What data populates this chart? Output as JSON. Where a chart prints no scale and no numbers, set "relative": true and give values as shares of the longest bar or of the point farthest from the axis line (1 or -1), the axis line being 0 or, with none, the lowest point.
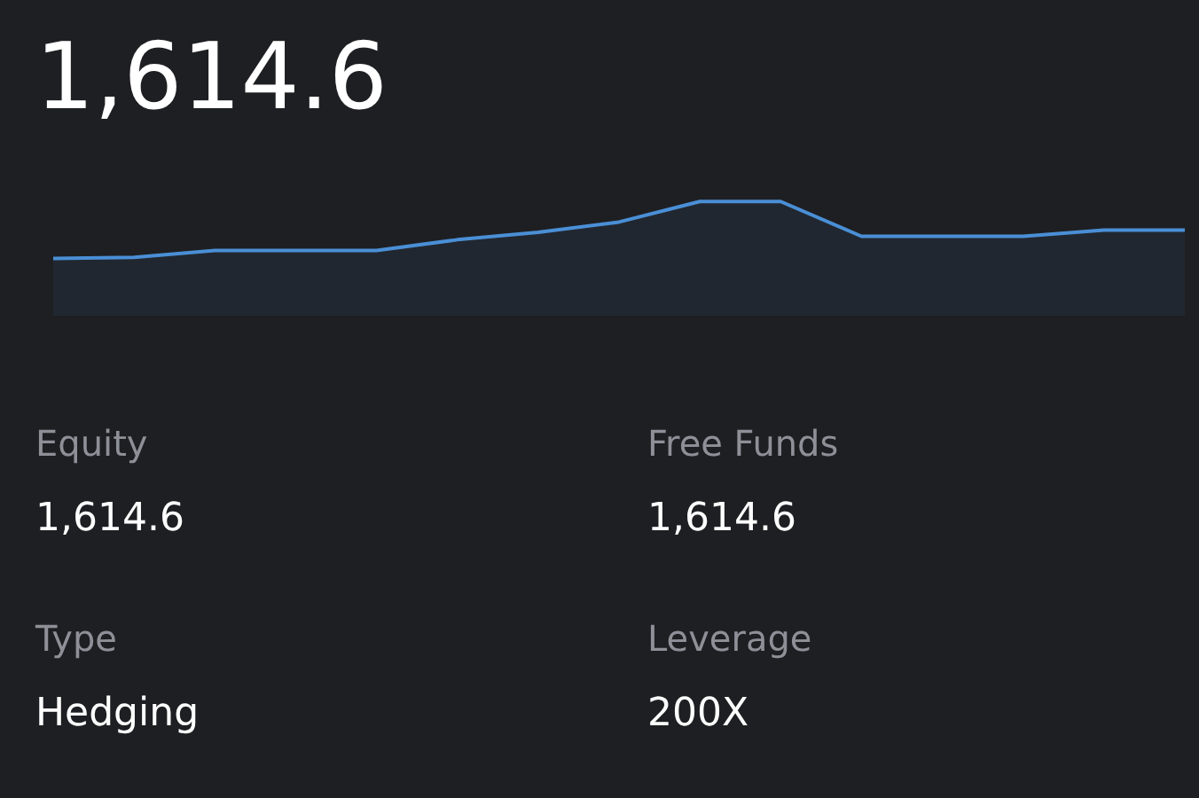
{
  "chart_data": {
    "type": "area",
    "title": "1,614.6",
    "categories": [
      null,
      null,
      null,
      null,
      null,
      null,
      null,
      null,
      null,
      null,
      null,
      null,
      null,
      null,
      null
    ],
    "values": [
      0,
      0.02,
      0.14,
      0.14,
      0.14,
      0.33,
      0.46,
      0.64,
      1,
      1,
      0.39,
      0.39,
      0.39,
      0.5,
      0.5
    ],
    "color": "#4a8fd6",
    "relative": true,
    "annotations": [
      "Equity",
      "1,614.6",
      "Free Funds",
      "1,614.6",
      "Type",
      "Hedging",
      "Leverage",
      "200X"
    ]
  }
}
